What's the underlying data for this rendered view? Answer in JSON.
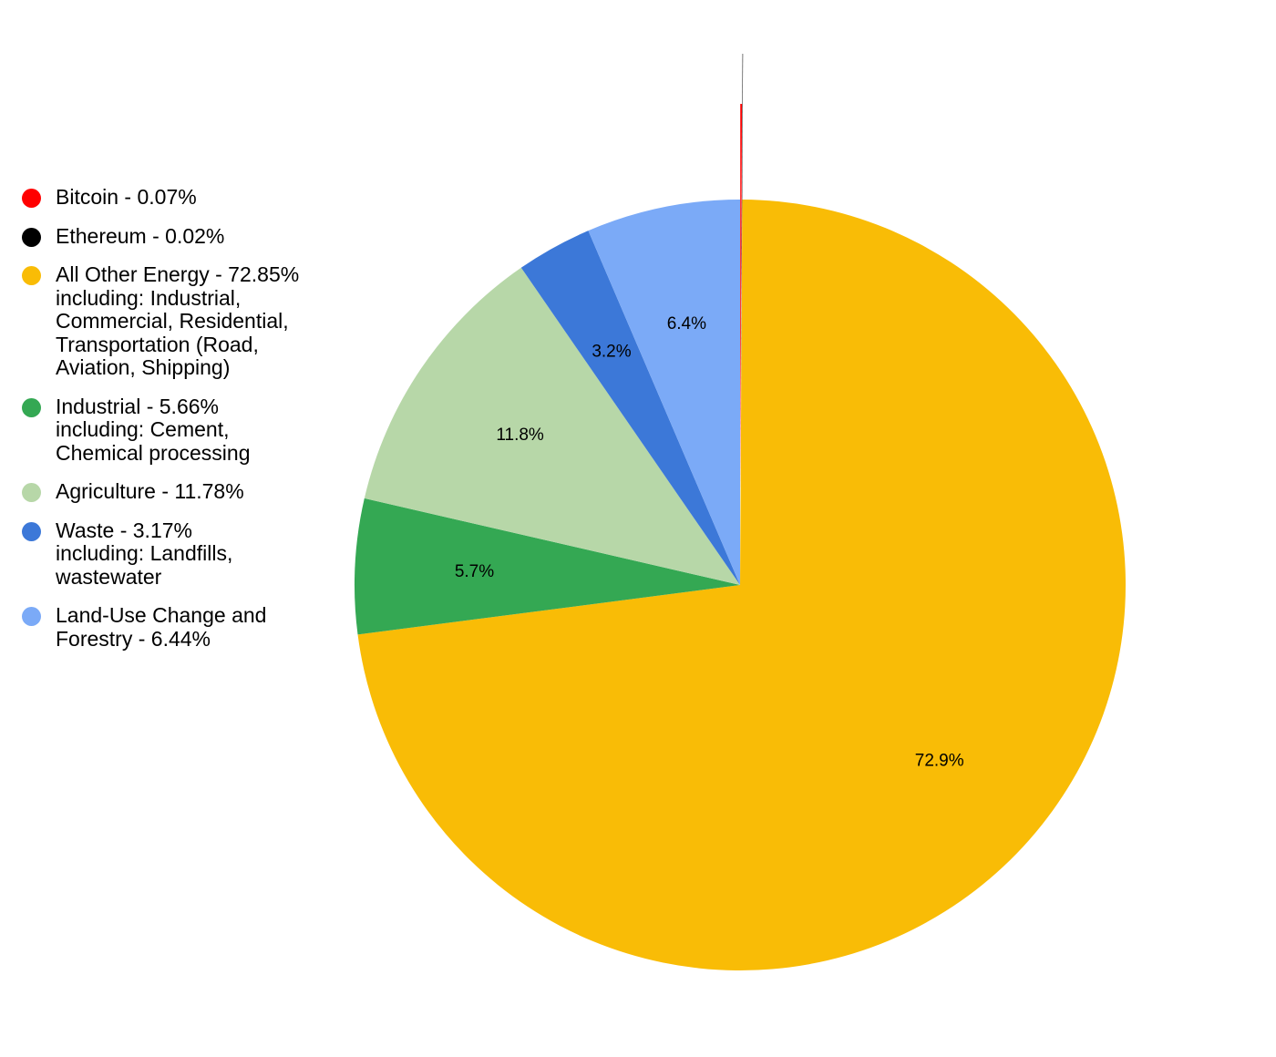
{
  "chart_data": {
    "type": "pie",
    "legend_position": "left",
    "slices": [
      {
        "name": "Bitcoin",
        "legend_lines": [
          "Bitcoin - 0.07%"
        ],
        "value": 0.07,
        "color": "#ff0000",
        "label": ""
      },
      {
        "name": "Ethereum",
        "legend_lines": [
          "Ethereum - 0.02%"
        ],
        "value": 0.02,
        "color": "#000000",
        "label": ""
      },
      {
        "name": "All Other Energy",
        "legend_lines": [
          "All Other Energy - 72.85%",
          "including: Industrial,",
          "Commercial, Residential,",
          "Transportation (Road,",
          "Aviation, Shipping)"
        ],
        "value": 72.85,
        "color": "#f9bc06",
        "label": "72.9%"
      },
      {
        "name": "Industrial",
        "legend_lines": [
          "Industrial - 5.66%",
          "including: Cement,",
          "Chemical processing"
        ],
        "value": 5.66,
        "color": "#34a853",
        "label": "5.7%"
      },
      {
        "name": "Agriculture",
        "legend_lines": [
          "Agriculture - 11.78%"
        ],
        "value": 11.78,
        "color": "#b7d7a8",
        "label": "11.8%"
      },
      {
        "name": "Waste",
        "legend_lines": [
          "Waste - 3.17%",
          "including: Landfills,",
          "wastewater"
        ],
        "value": 3.17,
        "color": "#3c78d8",
        "label": "3.2%"
      },
      {
        "name": "Land-Use Change and Forestry",
        "legend_lines": [
          "Land-Use Change and",
          "Forestry - 6.44%"
        ],
        "value": 6.44,
        "color": "#7baaf7",
        "label": "6.4%"
      }
    ]
  }
}
